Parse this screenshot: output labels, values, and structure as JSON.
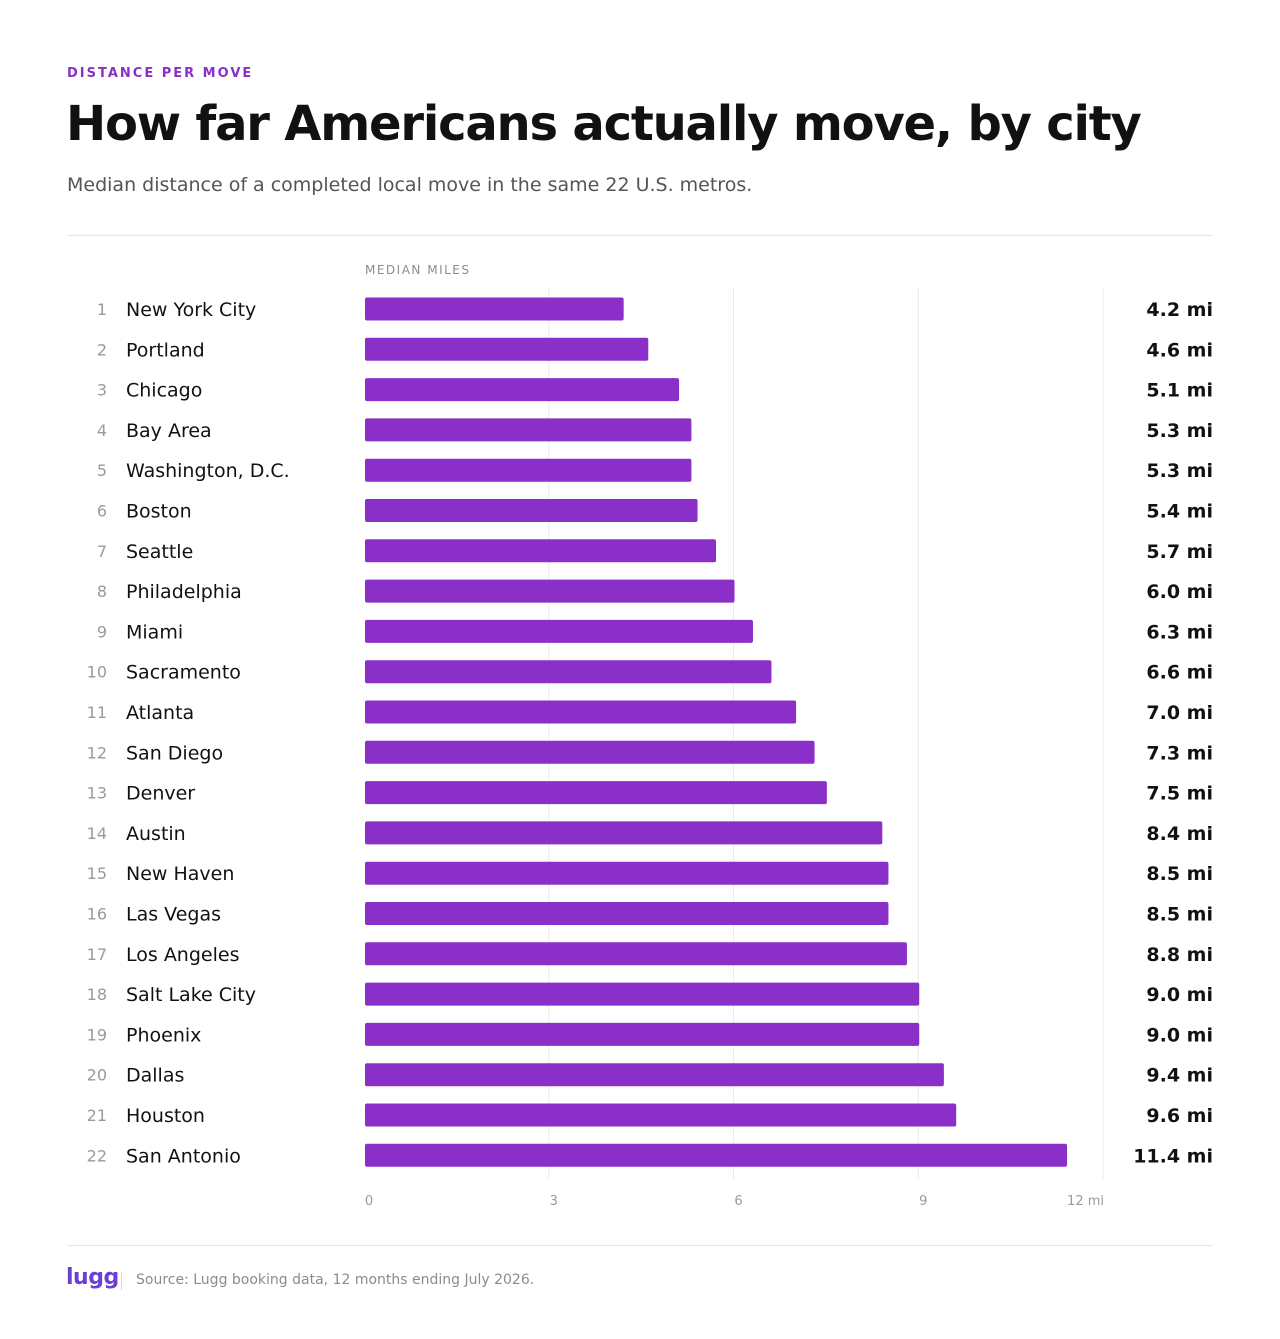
{
  "eyebrow": "DISTANCE PER MOVE",
  "title": "How far Americans actually move, by city",
  "subtitle": "Median distance of a completed local move in the same 22 U.S. metros.",
  "axis_caption": "MEDIAN MILES",
  "footer": {
    "logo": "lugg",
    "source": "Source: Lugg booking data, 12 months ending July 2026."
  },
  "colors": {
    "bar": "#8a2fc8",
    "eyebrow": "#8a2fc8",
    "logo": "#6a3fd6",
    "gridline": "#ececec"
  },
  "chart_data": {
    "type": "bar",
    "orientation": "horizontal",
    "ranks": [
      "1",
      "2",
      "3",
      "4",
      "5",
      "6",
      "7",
      "8",
      "9",
      "10",
      "11",
      "12",
      "13",
      "14",
      "15",
      "16",
      "17",
      "18",
      "19",
      "20",
      "21",
      "22"
    ],
    "categories": [
      "New York City",
      "Portland",
      "Chicago",
      "Bay Area",
      "Washington, D.C.",
      "Boston",
      "Seattle",
      "Philadelphia",
      "Miami",
      "Sacramento",
      "Atlanta",
      "San Diego",
      "Denver",
      "Austin",
      "New Haven",
      "Las Vegas",
      "Los Angeles",
      "Salt Lake City",
      "Phoenix",
      "Dallas",
      "Houston",
      "San Antonio"
    ],
    "values": [
      4.2,
      4.6,
      5.1,
      5.3,
      5.3,
      5.4,
      5.7,
      6.0,
      6.3,
      6.6,
      7.0,
      7.3,
      7.5,
      8.4,
      8.5,
      8.5,
      8.8,
      9.0,
      9.0,
      9.4,
      9.6,
      11.4
    ],
    "value_labels": [
      "4.2 mi",
      "4.6 mi",
      "5.1 mi",
      "5.3 mi",
      "5.3 mi",
      "5.4 mi",
      "5.7 mi",
      "6.0 mi",
      "6.3 mi",
      "6.6 mi",
      "7.0 mi",
      "7.3 mi",
      "7.5 mi",
      "8.4 mi",
      "8.5 mi",
      "8.5 mi",
      "8.8 mi",
      "9.0 mi",
      "9.0 mi",
      "9.4 mi",
      "9.6 mi",
      "11.4 mi"
    ],
    "x_ticks": [
      0,
      3,
      6,
      9,
      12
    ],
    "x_tick_labels": [
      "0",
      "3",
      "6",
      "9",
      "12 mi"
    ],
    "xlim": [
      0,
      12
    ],
    "grid": true
  }
}
